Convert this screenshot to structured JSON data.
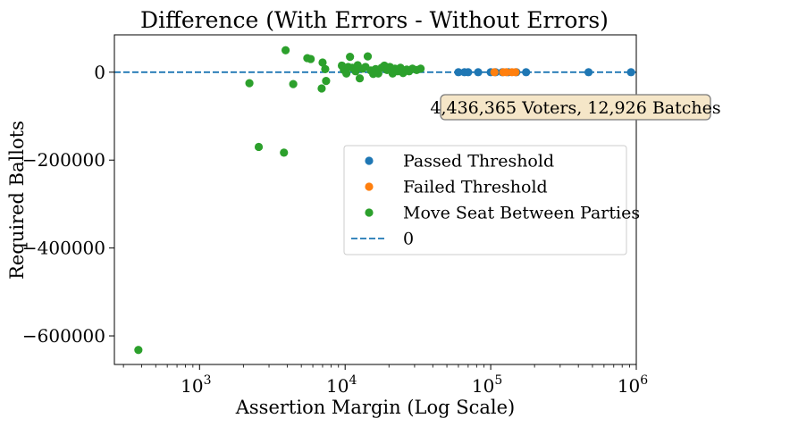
{
  "chart_data": {
    "type": "scatter",
    "title": "Difference (With Errors - Without Errors)",
    "xlabel": "Assertion Margin (Log Scale)",
    "ylabel": "Required Ballots",
    "xscale": "log",
    "xlim": [
      260,
      1000000
    ],
    "ylim": [
      -665000,
      85000
    ],
    "grid": false,
    "legend_position": "center-right",
    "x_ticks": [
      {
        "value": 1000,
        "base": "10",
        "exp": "3"
      },
      {
        "value": 10000,
        "base": "10",
        "exp": "4"
      },
      {
        "value": 100000,
        "base": "10",
        "exp": "5"
      },
      {
        "value": 1000000,
        "base": "10",
        "exp": "6"
      }
    ],
    "y_ticks": [
      {
        "value": 0,
        "label": "0"
      },
      {
        "value": -200000,
        "label": "−200000"
      },
      {
        "value": -400000,
        "label": "−400000"
      },
      {
        "value": -600000,
        "label": "−600000"
      }
    ],
    "annotation": {
      "text": "4,436,365 Voters, 12,926 Batches",
      "box_color": "#f5e6c8"
    },
    "series": [
      {
        "name": "Passed Threshold",
        "kind": "points",
        "color": "#1f77b4",
        "points": [
          [
            60000,
            0
          ],
          [
            66000,
            0
          ],
          [
            70000,
            0
          ],
          [
            82000,
            0
          ],
          [
            100000,
            0
          ],
          [
            108000,
            0
          ],
          [
            120000,
            0
          ],
          [
            132000,
            0
          ],
          [
            150000,
            0
          ],
          [
            175000,
            0
          ],
          [
            470000,
            0
          ],
          [
            920000,
            0
          ]
        ]
      },
      {
        "name": "Failed Threshold",
        "kind": "points",
        "color": "#ff7f0e",
        "points": [
          [
            106000,
            0
          ],
          [
            122000,
            0
          ],
          [
            128000,
            0
          ],
          [
            140000,
            0
          ],
          [
            148000,
            0
          ]
        ]
      },
      {
        "name": "Move Seat Between Parties",
        "kind": "points",
        "color": "#2ca02c",
        "points": [
          [
            380,
            -632000
          ],
          [
            2200,
            -25000
          ],
          [
            2550,
            -170000
          ],
          [
            3800,
            -183000
          ],
          [
            3900,
            50000
          ],
          [
            4400,
            -27000
          ],
          [
            5500,
            32000
          ],
          [
            5800,
            30000
          ],
          [
            6900,
            -37000
          ],
          [
            7000,
            22000
          ],
          [
            7300,
            7000
          ],
          [
            7400,
            -20000
          ],
          [
            9500,
            15000
          ],
          [
            9800,
            5000
          ],
          [
            10200,
            -3000
          ],
          [
            10500,
            12000
          ],
          [
            10800,
            35000
          ],
          [
            11200,
            10000
          ],
          [
            11800,
            2000
          ],
          [
            12200,
            16000
          ],
          [
            12600,
            -14000
          ],
          [
            13200,
            8000
          ],
          [
            13800,
            12000
          ],
          [
            14300,
            36000
          ],
          [
            15000,
            4000
          ],
          [
            15600,
            -4000
          ],
          [
            16200,
            7000
          ],
          [
            16900,
            -3000
          ],
          [
            17800,
            10000
          ],
          [
            18600,
            15000
          ],
          [
            19400,
            5000
          ],
          [
            20300,
            12000
          ],
          [
            21200,
            -3000
          ],
          [
            22000,
            8000
          ],
          [
            23000,
            2000
          ],
          [
            24000,
            10000
          ],
          [
            25000,
            -2000
          ],
          [
            26500,
            6000
          ],
          [
            27500,
            2000
          ],
          [
            29000,
            8000
          ],
          [
            31000,
            5000
          ],
          [
            33000,
            8000
          ]
        ]
      },
      {
        "name": "0",
        "kind": "hline",
        "color": "#1f77b4",
        "value": 0
      }
    ]
  }
}
